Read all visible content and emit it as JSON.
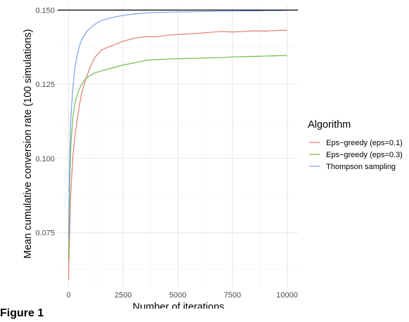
{
  "figure_caption": "Figure 1",
  "chart_data": {
    "type": "line",
    "title": "",
    "xlabel": "Number of iterations",
    "ylabel": "Mean cumulative conversion rate (100 simulations)",
    "xlim": [
      -500,
      10500
    ],
    "ylim": [
      0.0565,
      0.1515
    ],
    "x_ticks": [
      0,
      2500,
      5000,
      7500,
      10000
    ],
    "x_tick_labels": [
      "0",
      "2500",
      "5000",
      "7500",
      "10000"
    ],
    "y_ticks": [
      0.075,
      0.1,
      0.125,
      0.15
    ],
    "y_tick_labels": [
      "0.075",
      "0.100",
      "0.125",
      "0.150"
    ],
    "grid": true,
    "legend_title": "Algorithm",
    "legend_position": "right",
    "reference_line": {
      "y": 0.15,
      "color": "#000000"
    },
    "series": [
      {
        "name": "Eps−greedy (eps=0.1)",
        "color": "#E07A73",
        "x": [
          0,
          50,
          100,
          200,
          300,
          400,
          500,
          600,
          800,
          1000,
          1200,
          1500,
          1800,
          2000,
          2500,
          3000,
          3500,
          4000,
          4500,
          5000,
          5500,
          6000,
          6500,
          7000,
          7500,
          8000,
          8500,
          9000,
          9500,
          10000
        ],
        "y": [
          0.059,
          0.075,
          0.088,
          0.101,
          0.108,
          0.113,
          0.118,
          0.122,
          0.127,
          0.131,
          0.134,
          0.1365,
          0.1375,
          0.138,
          0.1395,
          0.1405,
          0.141,
          0.141,
          0.1415,
          0.1418,
          0.142,
          0.1422,
          0.1425,
          0.1428,
          0.1426,
          0.1428,
          0.143,
          0.1429,
          0.1431,
          0.1432
        ]
      },
      {
        "name": "Eps−greedy (eps=0.3)",
        "color": "#6DBF4A",
        "x": [
          0,
          50,
          100,
          200,
          300,
          400,
          500,
          600,
          800,
          1000,
          1200,
          1500,
          2000,
          2500,
          3000,
          3500,
          4000,
          4500,
          5000,
          5500,
          6000,
          6500,
          7000,
          7500,
          8000,
          8500,
          9000,
          9500,
          10000
        ],
        "y": [
          0.066,
          0.09,
          0.104,
          0.114,
          0.119,
          0.1215,
          0.1235,
          0.125,
          0.127,
          0.128,
          0.1288,
          0.1295,
          0.1305,
          0.1315,
          0.1322,
          0.133,
          0.1333,
          0.1335,
          0.1336,
          0.1337,
          0.1338,
          0.1339,
          0.134,
          0.1342,
          0.1343,
          0.1344,
          0.1345,
          0.1346,
          0.1347
        ]
      },
      {
        "name": "Thompson sampling",
        "color": "#7AA0F0",
        "x": [
          0,
          50,
          100,
          200,
          300,
          400,
          500,
          600,
          800,
          1000,
          1200,
          1500,
          2000,
          2500,
          3000,
          3500,
          4000,
          4500,
          5000,
          5500,
          6000,
          6500,
          7000,
          7500,
          8000,
          8500,
          9000,
          9500,
          10000
        ],
        "y": [
          0.073,
          0.1,
          0.113,
          0.124,
          0.131,
          0.135,
          0.138,
          0.14,
          0.1425,
          0.144,
          0.1452,
          0.1465,
          0.1475,
          0.1482,
          0.1487,
          0.149,
          0.1492,
          0.1493,
          0.1494,
          0.1494,
          0.1495,
          0.1495,
          0.1496,
          0.1496,
          0.1497,
          0.1497,
          0.1498,
          0.1498,
          0.1499
        ]
      }
    ]
  }
}
